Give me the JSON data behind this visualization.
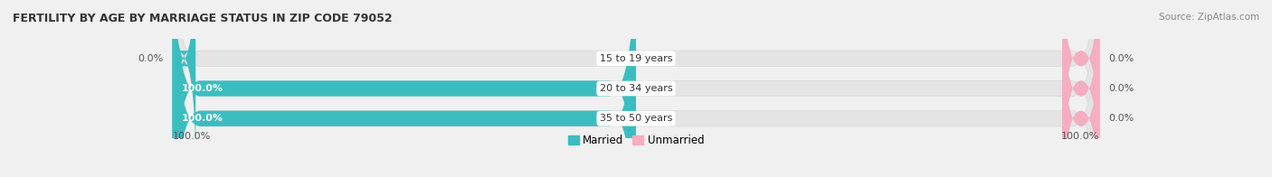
{
  "title": "FERTILITY BY AGE BY MARRIAGE STATUS IN ZIP CODE 79052",
  "source": "Source: ZipAtlas.com",
  "categories": [
    "15 to 19 years",
    "20 to 34 years",
    "35 to 50 years"
  ],
  "married_pct": [
    0.0,
    100.0,
    100.0
  ],
  "unmarried_pct": [
    0.0,
    0.0,
    0.0
  ],
  "married_color": "#3bbdc0",
  "unmarried_color": "#f4aec0",
  "bg_color": "#f0f0f0",
  "bar_bg_color": "#e4e4e4",
  "bar_bg_outline": "#d8d8d8",
  "left_labels": [
    "0.0%",
    "100.0%",
    "100.0%"
  ],
  "right_labels": [
    "0.0%",
    "0.0%",
    "0.0%"
  ],
  "bottom_left_label": "100.0%",
  "bottom_right_label": "100.0%",
  "legend_married": "Married",
  "legend_unmarried": "Unmarried",
  "nub_size": 5.0,
  "pink_nub_size": 8.0
}
